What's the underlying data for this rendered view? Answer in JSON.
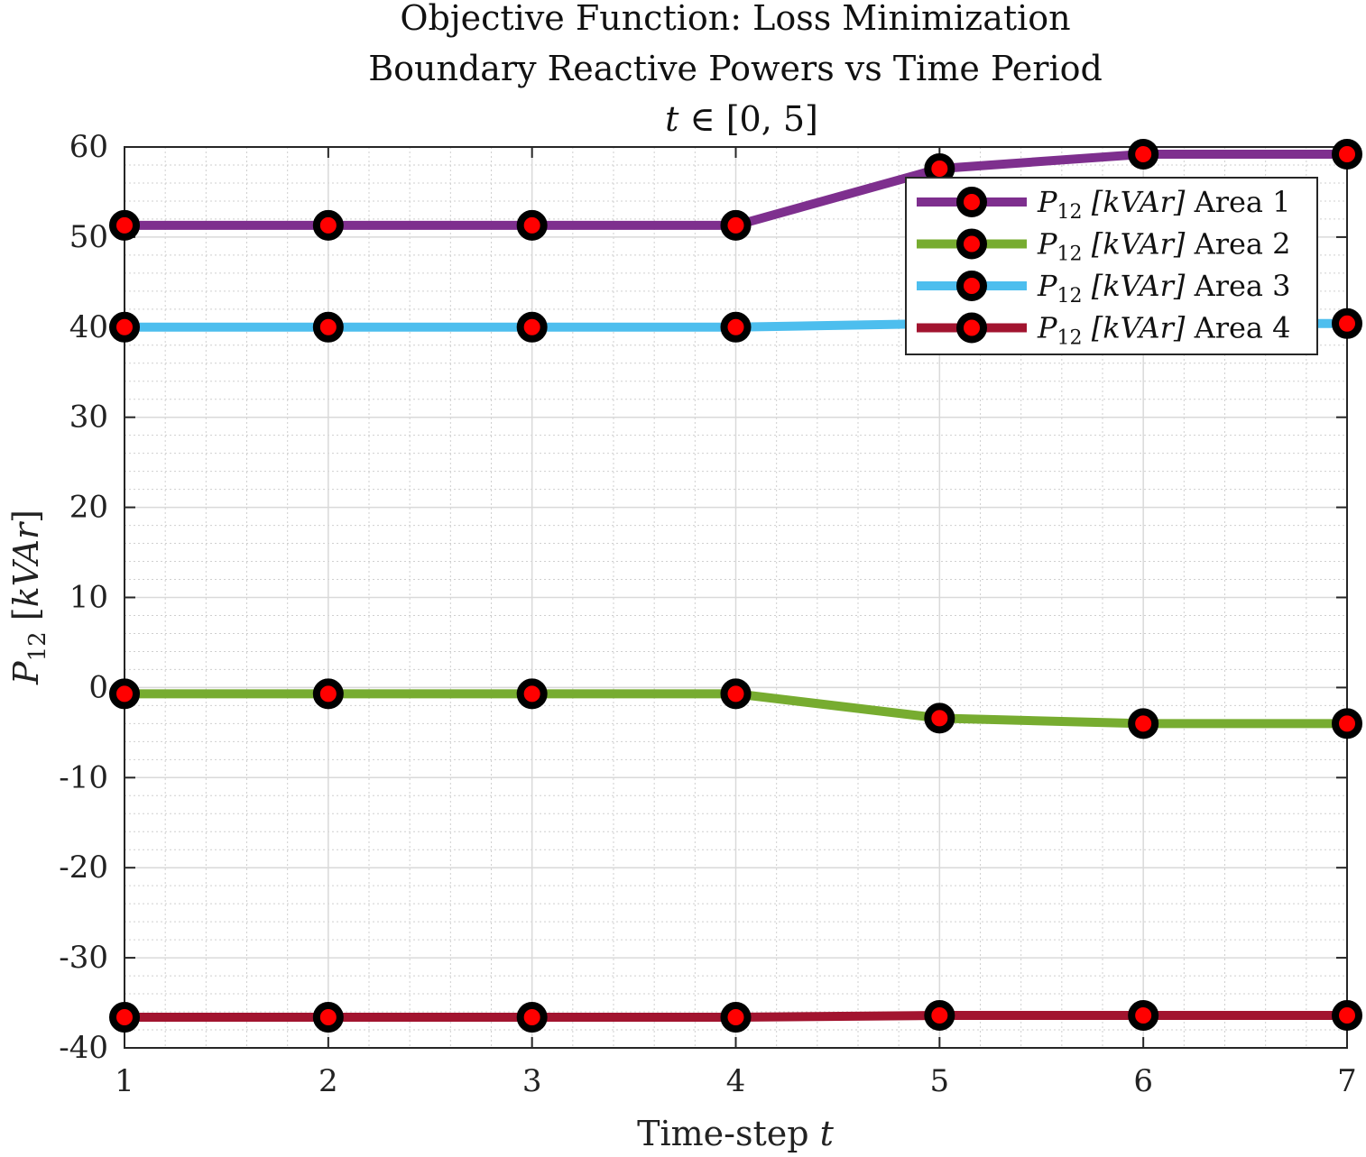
{
  "chart_data": {
    "type": "line",
    "title": [
      "Objective Function: Loss Minimization",
      "Boundary Reactive Powers vs Time Period"
    ],
    "title_math": {
      "var": "t",
      "rest": " ∈ [0, 5]"
    },
    "xlabel": {
      "text": "Time-step ",
      "var": "t"
    },
    "ylabel": {
      "var": "P",
      "sub": "12",
      "unit_open": " [",
      "unit": "kVAr",
      "unit_close": "]"
    },
    "x": [
      1,
      2,
      3,
      4,
      5,
      6,
      7
    ],
    "xlim": [
      1,
      7
    ],
    "ylim": [
      -40,
      60
    ],
    "x_ticks": [
      "1",
      "2",
      "3",
      "4",
      "5",
      "6",
      "7"
    ],
    "y_ticks": [
      "60",
      "50",
      "40",
      "30",
      "20",
      "10",
      "0",
      "-10",
      "-20",
      "-30",
      "-40"
    ],
    "grid": true,
    "minor_grid": true,
    "legend_position": "top-right",
    "marker": {
      "outer_color": "#000000",
      "inner_color": "#ff0000"
    },
    "series": [
      {
        "name": "Area 1",
        "color": "#7e2f8e",
        "values": [
          51.3,
          51.3,
          51.3,
          51.3,
          57.6,
          59.2,
          59.2
        ]
      },
      {
        "name": "Area 2",
        "color": "#77ac30",
        "values": [
          -0.7,
          -0.7,
          -0.7,
          -0.7,
          -3.4,
          -4.0,
          -4.0
        ]
      },
      {
        "name": "Area 3",
        "color": "#4dbeee",
        "values": [
          40.0,
          40.0,
          40.0,
          40.0,
          40.4,
          40.4,
          40.4
        ]
      },
      {
        "name": "Area 4",
        "color": "#a2142f",
        "values": [
          -36.6,
          -36.6,
          -36.6,
          -36.6,
          -36.4,
          -36.4,
          -36.4
        ]
      }
    ],
    "legend_label": {
      "var": "P",
      "sub": "12",
      "unit": "[kVAr]"
    }
  }
}
